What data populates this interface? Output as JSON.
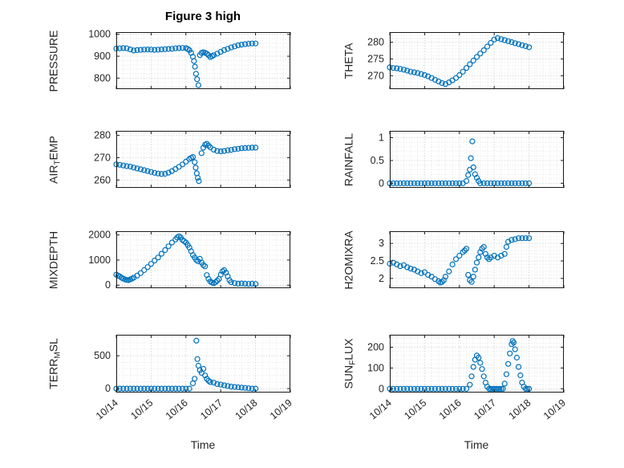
{
  "figure_title": "Figure 3 high",
  "colors": {
    "marker": "#0072BD",
    "grid": "#c9c9c9",
    "minor_grid": "#e4e4e4",
    "axis": "#1a1a1a",
    "text": "#262626"
  },
  "chart_data": {
    "type": "scatter",
    "marker": "open-circle",
    "grid": "dotted-major-and-minor",
    "layout": "4x2-subplots",
    "x_axis": {
      "xlim": [
        0,
        5
      ],
      "xticks": [
        0,
        1,
        2,
        3,
        4,
        5
      ],
      "xtick_labels": [
        "10/14",
        "10/15",
        "10/16",
        "10/17",
        "10/18",
        "10/19"
      ],
      "xlabel": "Time",
      "minor_step": 0.2
    },
    "subplots": [
      {
        "id": "pressure",
        "ylabel": {
          "pre": "PRESSURE",
          "sub": "",
          "post": ""
        },
        "ylim": [
          750,
          1010
        ],
        "yticks": [
          800,
          900,
          1000
        ],
        "x": [
          0,
          0.1,
          0.2,
          0.3,
          0.4,
          0.5,
          0.6,
          0.7,
          0.8,
          0.9,
          1.0,
          1.1,
          1.2,
          1.3,
          1.4,
          1.5,
          1.6,
          1.7,
          1.8,
          1.9,
          2.0,
          2.05,
          2.1,
          2.15,
          2.2,
          2.23,
          2.26,
          2.29,
          2.32,
          2.36,
          2.4,
          2.45,
          2.5,
          2.55,
          2.6,
          2.65,
          2.7,
          2.75,
          2.8,
          2.9,
          3.0,
          3.1,
          3.2,
          3.3,
          3.4,
          3.5,
          3.6,
          3.7,
          3.8,
          3.9,
          4.0
        ],
        "y": [
          935,
          936,
          937,
          936,
          931,
          926,
          928,
          929,
          930,
          931,
          930,
          929,
          930,
          931,
          932,
          933,
          934,
          936,
          937,
          938,
          937,
          933,
          928,
          915,
          898,
          878,
          852,
          820,
          795,
          768,
          905,
          915,
          918,
          916,
          912,
          905,
          896,
          900,
          905,
          912,
          920,
          928,
          934,
          940,
          945,
          950,
          953,
          955,
          957,
          958,
          958
        ]
      },
      {
        "id": "theta",
        "ylabel": {
          "pre": "THETA",
          "sub": "",
          "post": ""
        },
        "ylim": [
          266,
          283
        ],
        "yticks": [
          270,
          275,
          280
        ],
        "x": [
          0,
          0.1,
          0.2,
          0.3,
          0.4,
          0.5,
          0.6,
          0.7,
          0.8,
          0.9,
          1.0,
          1.1,
          1.2,
          1.3,
          1.4,
          1.5,
          1.6,
          1.7,
          1.8,
          1.9,
          2.0,
          2.1,
          2.2,
          2.3,
          2.4,
          2.5,
          2.6,
          2.7,
          2.8,
          2.9,
          3.0,
          3.1,
          3.2,
          3.3,
          3.4,
          3.5,
          3.6,
          3.7,
          3.8,
          3.9,
          4.0
        ],
        "y": [
          272.5,
          272.3,
          272.2,
          272.0,
          271.8,
          271.5,
          271.2,
          271.0,
          270.8,
          270.5,
          270.2,
          269.8,
          269.3,
          268.8,
          268.3,
          267.8,
          267.5,
          268.0,
          268.6,
          269.3,
          270.2,
          271.2,
          272.3,
          273.4,
          274.5,
          275.6,
          276.6,
          277.6,
          278.7,
          279.8,
          280.8,
          281.2,
          280.9,
          280.6,
          280.3,
          280.0,
          279.7,
          279.4,
          279.1,
          278.8,
          278.5
        ]
      },
      {
        "id": "air-temp",
        "ylabel": {
          "pre": "AIR",
          "sub": "T",
          "post": "EMP"
        },
        "ylim": [
          256.5,
          282
        ],
        "yticks": [
          260,
          270,
          280
        ],
        "x": [
          0,
          0.1,
          0.2,
          0.3,
          0.4,
          0.5,
          0.6,
          0.7,
          0.8,
          0.9,
          1.0,
          1.1,
          1.2,
          1.3,
          1.4,
          1.5,
          1.6,
          1.7,
          1.8,
          1.9,
          2.0,
          2.1,
          2.15,
          2.2,
          2.25,
          2.28,
          2.31,
          2.34,
          2.37,
          2.45,
          2.5,
          2.55,
          2.6,
          2.65,
          2.7,
          2.8,
          2.9,
          3.0,
          3.1,
          3.2,
          3.3,
          3.4,
          3.5,
          3.6,
          3.7,
          3.8,
          3.9,
          4.0
        ],
        "y": [
          267.0,
          266.8,
          266.5,
          266.2,
          266.0,
          265.6,
          265.2,
          264.8,
          264.4,
          264.0,
          263.6,
          263.2,
          262.9,
          262.7,
          262.8,
          263.3,
          264.0,
          264.9,
          265.9,
          267.0,
          268.2,
          269.4,
          269.9,
          270.3,
          268.0,
          265.5,
          263.0,
          261.0,
          259.5,
          272.0,
          274.5,
          275.8,
          276.2,
          275.4,
          274.6,
          273.6,
          273.0,
          272.8,
          273.0,
          273.3,
          273.5,
          273.8,
          274.0,
          274.2,
          274.3,
          274.4,
          274.5,
          274.5
        ]
      },
      {
        "id": "rainfall",
        "ylabel": {
          "pre": "RAINFALL",
          "sub": "",
          "post": ""
        },
        "ylim": [
          -0.1,
          1.15
        ],
        "yticks": [
          0,
          0.5,
          1
        ],
        "x": [
          0,
          0.1,
          0.2,
          0.3,
          0.4,
          0.5,
          0.6,
          0.7,
          0.8,
          0.9,
          1.0,
          1.1,
          1.2,
          1.3,
          1.4,
          1.5,
          1.6,
          1.7,
          1.8,
          1.9,
          2.0,
          2.1,
          2.2,
          2.25,
          2.3,
          2.33,
          2.37,
          2.4,
          2.45,
          2.5,
          2.55,
          2.6,
          2.7,
          2.8,
          2.9,
          3.0,
          3.1,
          3.2,
          3.3,
          3.4,
          3.5,
          3.6,
          3.7,
          3.8,
          3.9,
          4.0
        ],
        "y": [
          0,
          0,
          0,
          0,
          0,
          0,
          0,
          0,
          0,
          0,
          0,
          0,
          0,
          0,
          0,
          0,
          0,
          0,
          0,
          0,
          0,
          0,
          0.05,
          0.18,
          0.3,
          0.55,
          0.92,
          0.35,
          0.2,
          0.12,
          0.05,
          0,
          0,
          0,
          0,
          0,
          0,
          0,
          0,
          0,
          0,
          0,
          0,
          0,
          0,
          0
        ]
      },
      {
        "id": "mixdepth",
        "ylabel": {
          "pre": "MIXDEPTH",
          "sub": "",
          "post": ""
        },
        "ylim": [
          -120,
          2150
        ],
        "yticks": [
          0,
          1000,
          2000
        ],
        "x": [
          0,
          0.05,
          0.1,
          0.15,
          0.2,
          0.25,
          0.3,
          0.35,
          0.4,
          0.45,
          0.5,
          0.6,
          0.7,
          0.8,
          0.9,
          1.0,
          1.1,
          1.2,
          1.3,
          1.4,
          1.5,
          1.6,
          1.7,
          1.75,
          1.8,
          1.85,
          1.9,
          1.95,
          2.0,
          2.05,
          2.1,
          2.15,
          2.2,
          2.25,
          2.3,
          2.35,
          2.4,
          2.45,
          2.5,
          2.55,
          2.6,
          2.65,
          2.7,
          2.75,
          2.8,
          2.85,
          2.9,
          2.95,
          3.0,
          3.05,
          3.1,
          3.15,
          3.2,
          3.25,
          3.3,
          3.4,
          3.5,
          3.6,
          3.7,
          3.8,
          3.9,
          4.0
        ],
        "y": [
          420,
          380,
          350,
          300,
          260,
          230,
          210,
          200,
          230,
          260,
          300,
          380,
          480,
          600,
          720,
          850,
          980,
          1100,
          1250,
          1400,
          1550,
          1700,
          1820,
          1900,
          1950,
          1900,
          1800,
          1750,
          1700,
          1600,
          1500,
          1350,
          1200,
          1100,
          1000,
          950,
          1050,
          900,
          800,
          750,
          400,
          250,
          150,
          100,
          80,
          120,
          180,
          250,
          420,
          550,
          600,
          500,
          350,
          200,
          120,
          80,
          60,
          70,
          60,
          50,
          60,
          50
        ]
      },
      {
        "id": "h2omixra",
        "ylabel": {
          "pre": "H2OMIXRA",
          "sub": "",
          "post": ""
        },
        "ylim": [
          1.72,
          3.35
        ],
        "yticks": [
          2,
          2.5,
          3
        ],
        "x": [
          0,
          0.1,
          0.2,
          0.3,
          0.4,
          0.5,
          0.6,
          0.7,
          0.8,
          0.9,
          1.0,
          1.1,
          1.2,
          1.3,
          1.4,
          1.45,
          1.5,
          1.55,
          1.6,
          1.7,
          1.8,
          1.9,
          2.0,
          2.1,
          2.15,
          2.2,
          2.25,
          2.3,
          2.35,
          2.4,
          2.45,
          2.5,
          2.55,
          2.6,
          2.65,
          2.7,
          2.75,
          2.8,
          2.85,
          2.9,
          3.0,
          3.1,
          3.2,
          3.3,
          3.35,
          3.4,
          3.5,
          3.6,
          3.7,
          3.8,
          3.9,
          4.0
        ],
        "y": [
          2.42,
          2.45,
          2.4,
          2.35,
          2.38,
          2.32,
          2.28,
          2.25,
          2.2,
          2.15,
          2.18,
          2.1,
          2.05,
          1.98,
          1.92,
          1.88,
          1.9,
          1.95,
          2.05,
          2.2,
          2.4,
          2.55,
          2.65,
          2.75,
          2.8,
          2.85,
          2.1,
          1.95,
          1.9,
          2.05,
          2.25,
          2.45,
          2.6,
          2.75,
          2.85,
          2.9,
          2.7,
          2.6,
          2.55,
          2.6,
          2.65,
          2.6,
          2.65,
          2.7,
          2.9,
          3.05,
          3.1,
          3.12,
          3.15,
          3.15,
          3.15,
          3.15
        ]
      },
      {
        "id": "terr-msl",
        "ylabel": {
          "pre": "TERR",
          "sub": "M",
          "post": "SL"
        },
        "ylim": [
          -60,
          820
        ],
        "yticks": [
          0,
          500
        ],
        "x": [
          0,
          0.1,
          0.2,
          0.3,
          0.4,
          0.5,
          0.6,
          0.7,
          0.8,
          0.9,
          1.0,
          1.1,
          1.2,
          1.3,
          1.4,
          1.5,
          1.6,
          1.7,
          1.8,
          1.9,
          2.0,
          2.1,
          2.2,
          2.25,
          2.3,
          2.33,
          2.36,
          2.4,
          2.45,
          2.5,
          2.55,
          2.6,
          2.65,
          2.7,
          2.8,
          2.9,
          3.0,
          3.1,
          3.2,
          3.3,
          3.4,
          3.5,
          3.6,
          3.7,
          3.8,
          3.9,
          4.0
        ],
        "y": [
          0,
          0,
          0,
          0,
          0,
          0,
          0,
          0,
          0,
          0,
          0,
          0,
          0,
          0,
          0,
          0,
          0,
          0,
          0,
          0,
          0,
          0,
          80,
          150,
          730,
          450,
          350,
          280,
          240,
          300,
          200,
          150,
          120,
          100,
          90,
          70,
          60,
          50,
          40,
          30,
          25,
          20,
          15,
          10,
          5,
          0,
          0
        ]
      },
      {
        "id": "sun-flux",
        "ylabel": {
          "pre": "SUN",
          "sub": "F",
          "post": "LUX"
        },
        "ylim": [
          -18,
          260
        ],
        "yticks": [
          0,
          100,
          200
        ],
        "x": [
          0,
          0.1,
          0.2,
          0.3,
          0.4,
          0.5,
          0.6,
          0.7,
          0.8,
          0.9,
          1.0,
          1.1,
          1.2,
          1.3,
          1.4,
          1.5,
          1.6,
          1.7,
          1.8,
          1.9,
          2.0,
          2.1,
          2.2,
          2.3,
          2.35,
          2.4,
          2.45,
          2.5,
          2.55,
          2.6,
          2.65,
          2.7,
          2.75,
          2.8,
          2.85,
          2.9,
          2.95,
          3.0,
          3.05,
          3.1,
          3.15,
          3.2,
          3.25,
          3.3,
          3.35,
          3.4,
          3.45,
          3.5,
          3.53,
          3.56,
          3.6,
          3.65,
          3.7,
          3.75,
          3.8,
          3.85,
          3.9,
          3.95,
          4.0
        ],
        "y": [
          0,
          0,
          0,
          0,
          0,
          0,
          0,
          0,
          0,
          0,
          0,
          0,
          0,
          0,
          0,
          0,
          0,
          0,
          0,
          0,
          0,
          0,
          0,
          20,
          60,
          105,
          140,
          160,
          150,
          125,
          95,
          60,
          30,
          10,
          0,
          0,
          0,
          0,
          0,
          0,
          0,
          0,
          0,
          25,
          70,
          120,
          170,
          215,
          230,
          222,
          190,
          150,
          105,
          65,
          30,
          10,
          0,
          0,
          0
        ]
      }
    ]
  }
}
